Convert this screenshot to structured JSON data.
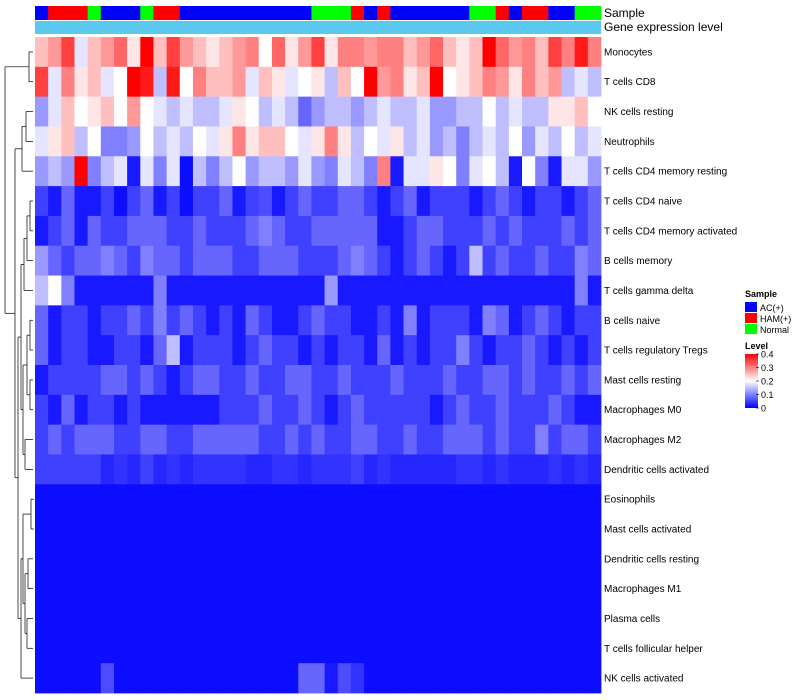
{
  "chart_data": {
    "type": "heatmap",
    "title": "",
    "annotation_labels": [
      "Sample",
      "Gene expression level"
    ],
    "sample_groups": [
      "AC(+)",
      "HAM(+)",
      "HAM(+)",
      "HAM(+)",
      "Normal",
      "AC(+)",
      "AC(+)",
      "AC(+)",
      "Normal",
      "HAM(+)",
      "HAM(+)",
      "AC(+)",
      "AC(+)",
      "AC(+)",
      "AC(+)",
      "AC(+)",
      "AC(+)",
      "AC(+)",
      "AC(+)",
      "AC(+)",
      "AC(+)",
      "Normal",
      "Normal",
      "Normal",
      "HAM(+)",
      "AC(+)",
      "HAM(+)",
      "AC(+)",
      "AC(+)",
      "AC(+)",
      "AC(+)",
      "AC(+)",
      "AC(+)",
      "Normal",
      "Normal",
      "HAM(+)",
      "AC(+)",
      "HAM(+)",
      "HAM(+)",
      "AC(+)",
      "AC(+)",
      "Normal",
      "Normal"
    ],
    "row_labels": [
      "Monocytes",
      "T cells CD8",
      "NK cells resting",
      "Neutrophils",
      "T cells CD4 memory resting",
      "T cells CD4 naive",
      "T cells CD4 memory activated",
      "B cells memory",
      "T cells gamma delta",
      "B cells naive",
      "T cells regulatory  Tregs",
      "Mast cells resting",
      "Macrophages M0",
      "Macrophages M2",
      "Dendritic cells activated",
      "Eosinophils",
      "Mast cells activated",
      "Dendritic cells resting",
      "Macrophages M1",
      "Plasma cells",
      "T cells follicular helper",
      "NK cells activated"
    ],
    "values": [
      [
        0.25,
        0.28,
        0.35,
        0.18,
        0.25,
        0.28,
        0.32,
        0.22,
        0.4,
        0.25,
        0.35,
        0.28,
        0.25,
        0.22,
        0.25,
        0.28,
        0.3,
        0.2,
        0.32,
        0.22,
        0.28,
        0.35,
        0.22,
        0.3,
        0.3,
        0.28,
        0.3,
        0.3,
        0.25,
        0.28,
        0.32,
        0.25,
        0.22,
        0.25,
        0.4,
        0.32,
        0.28,
        0.3,
        0.25,
        0.35,
        0.3,
        0.38,
        0.3
      ],
      [
        0.35,
        0.18,
        0.3,
        0.22,
        0.25,
        0.18,
        0.2,
        0.4,
        0.38,
        0.15,
        0.38,
        0.2,
        0.3,
        0.25,
        0.25,
        0.28,
        0.18,
        0.25,
        0.22,
        0.18,
        0.2,
        0.22,
        0.15,
        0.25,
        0.2,
        0.4,
        0.28,
        0.3,
        0.22,
        0.25,
        0.4,
        0.2,
        0.22,
        0.25,
        0.3,
        0.28,
        0.22,
        0.3,
        0.25,
        0.28,
        0.15,
        0.18,
        0.15
      ],
      [
        0.12,
        0.18,
        0.25,
        0.2,
        0.22,
        0.25,
        0.2,
        0.28,
        0.2,
        0.18,
        0.15,
        0.18,
        0.15,
        0.15,
        0.18,
        0.22,
        0.2,
        0.15,
        0.18,
        0.15,
        0.08,
        0.12,
        0.15,
        0.15,
        0.12,
        0.15,
        0.18,
        0.15,
        0.15,
        0.18,
        0.12,
        0.12,
        0.15,
        0.15,
        0.2,
        0.15,
        0.18,
        0.15,
        0.15,
        0.22,
        0.22,
        0.25,
        0.2
      ],
      [
        0.18,
        0.22,
        0.25,
        0.15,
        0.2,
        0.1,
        0.1,
        0.12,
        0.2,
        0.15,
        0.18,
        0.15,
        0.2,
        0.18,
        0.22,
        0.3,
        0.22,
        0.25,
        0.25,
        0.2,
        0.18,
        0.22,
        0.3,
        0.22,
        0.15,
        0.2,
        0.18,
        0.22,
        0.15,
        0.18,
        0.12,
        0.15,
        0.1,
        0.15,
        0.18,
        0.15,
        0.2,
        0.12,
        0.18,
        0.15,
        0.2,
        0.15,
        0.18
      ],
      [
        0.12,
        0.15,
        0.12,
        0.4,
        0.1,
        0.15,
        0.18,
        0.02,
        0.18,
        0.1,
        0.18,
        0.01,
        0.15,
        0.1,
        0.15,
        0.2,
        0.12,
        0.15,
        0.15,
        0.12,
        0.18,
        0.12,
        0.1,
        0.18,
        0.15,
        0.1,
        0.3,
        0.02,
        0.18,
        0.18,
        0.22,
        0.2,
        0.1,
        0.18,
        0.2,
        0.15,
        0.02,
        0.2,
        0.1,
        0.02,
        0.18,
        0.18,
        0.12
      ],
      [
        0.05,
        0.02,
        0.08,
        0.02,
        0.02,
        0.05,
        0.01,
        0.05,
        0.08,
        0.02,
        0.05,
        0.01,
        0.05,
        0.05,
        0.08,
        0.02,
        0.05,
        0.06,
        0.02,
        0.05,
        0.08,
        0.05,
        0.05,
        0.08,
        0.08,
        0.05,
        0.02,
        0.05,
        0.08,
        0.02,
        0.05,
        0.05,
        0.05,
        0.02,
        0.05,
        0.08,
        0.05,
        0.02,
        0.05,
        0.05,
        0.02,
        0.05,
        0.08
      ],
      [
        0.02,
        0.05,
        0.08,
        0.02,
        0.08,
        0.05,
        0.05,
        0.08,
        0.08,
        0.08,
        0.05,
        0.05,
        0.08,
        0.05,
        0.05,
        0.05,
        0.08,
        0.1,
        0.08,
        0.05,
        0.05,
        0.08,
        0.08,
        0.08,
        0.08,
        0.08,
        0.02,
        0.02,
        0.05,
        0.08,
        0.08,
        0.05,
        0.05,
        0.05,
        0.08,
        0.05,
        0.08,
        0.05,
        0.05,
        0.05,
        0.08,
        0.05,
        0.08
      ],
      [
        0.12,
        0.08,
        0.05,
        0.08,
        0.08,
        0.1,
        0.08,
        0.05,
        0.1,
        0.08,
        0.08,
        0.05,
        0.08,
        0.08,
        0.08,
        0.05,
        0.05,
        0.08,
        0.08,
        0.08,
        0.05,
        0.05,
        0.05,
        0.08,
        0.1,
        0.08,
        0.05,
        0.02,
        0.05,
        0.08,
        0.05,
        0.02,
        0.05,
        0.15,
        0.05,
        0.08,
        0.05,
        0.05,
        0.08,
        0.05,
        0.05,
        0.1,
        0.08
      ],
      [
        0.15,
        0.2,
        0.1,
        0.02,
        0.02,
        0.02,
        0.02,
        0.02,
        0.02,
        0.1,
        0.02,
        0.02,
        0.02,
        0.02,
        0.02,
        0.02,
        0.02,
        0.02,
        0.02,
        0.02,
        0.02,
        0.02,
        0.12,
        0.02,
        0.02,
        0.02,
        0.02,
        0.02,
        0.02,
        0.02,
        0.02,
        0.02,
        0.02,
        0.02,
        0.02,
        0.02,
        0.02,
        0.02,
        0.02,
        0.02,
        0.02,
        0.1,
        0.02
      ],
      [
        0.08,
        0.02,
        0.05,
        0.05,
        0.02,
        0.05,
        0.05,
        0.08,
        0.05,
        0.1,
        0.05,
        0.08,
        0.05,
        0.02,
        0.05,
        0.02,
        0.08,
        0.05,
        0.02,
        0.02,
        0.05,
        0.08,
        0.05,
        0.05,
        0.02,
        0.02,
        0.05,
        0.02,
        0.1,
        0.02,
        0.05,
        0.05,
        0.05,
        0.02,
        0.1,
        0.08,
        0.02,
        0.05,
        0.08,
        0.05,
        0.02,
        0.05,
        0.05
      ],
      [
        0.08,
        0.02,
        0.05,
        0.05,
        0.02,
        0.02,
        0.05,
        0.05,
        0.02,
        0.08,
        0.15,
        0.02,
        0.05,
        0.05,
        0.05,
        0.02,
        0.05,
        0.08,
        0.05,
        0.05,
        0.02,
        0.05,
        0.02,
        0.05,
        0.05,
        0.02,
        0.08,
        0.02,
        0.05,
        0.02,
        0.05,
        0.05,
        0.1,
        0.05,
        0.02,
        0.05,
        0.05,
        0.08,
        0.05,
        0.02,
        0.05,
        0.02,
        0.05
      ],
      [
        0.02,
        0.05,
        0.05,
        0.05,
        0.05,
        0.08,
        0.08,
        0.05,
        0.08,
        0.05,
        0.02,
        0.05,
        0.08,
        0.08,
        0.05,
        0.05,
        0.08,
        0.05,
        0.05,
        0.08,
        0.08,
        0.05,
        0.05,
        0.08,
        0.05,
        0.05,
        0.05,
        0.08,
        0.05,
        0.05,
        0.05,
        0.08,
        0.05,
        0.05,
        0.08,
        0.08,
        0.05,
        0.08,
        0.05,
        0.05,
        0.08,
        0.05,
        0.08
      ],
      [
        0.05,
        0.02,
        0.08,
        0.02,
        0.05,
        0.05,
        0.02,
        0.05,
        0.02,
        0.02,
        0.02,
        0.02,
        0.02,
        0.02,
        0.05,
        0.05,
        0.05,
        0.08,
        0.05,
        0.05,
        0.08,
        0.05,
        0.02,
        0.05,
        0.08,
        0.05,
        0.05,
        0.05,
        0.05,
        0.05,
        0.02,
        0.05,
        0.08,
        0.05,
        0.05,
        0.08,
        0.05,
        0.05,
        0.05,
        0.08,
        0.05,
        0.02,
        0.02
      ],
      [
        0.05,
        0.08,
        0.05,
        0.08,
        0.08,
        0.08,
        0.05,
        0.05,
        0.08,
        0.08,
        0.05,
        0.05,
        0.08,
        0.08,
        0.08,
        0.08,
        0.08,
        0.05,
        0.05,
        0.08,
        0.05,
        0.08,
        0.05,
        0.05,
        0.08,
        0.08,
        0.05,
        0.05,
        0.08,
        0.05,
        0.05,
        0.08,
        0.08,
        0.08,
        0.05,
        0.08,
        0.05,
        0.05,
        0.1,
        0.05,
        0.08,
        0.08,
        0.05
      ],
      [
        0.05,
        0.05,
        0.05,
        0.05,
        0.05,
        0.03,
        0.04,
        0.03,
        0.05,
        0.03,
        0.04,
        0.03,
        0.04,
        0.04,
        0.04,
        0.04,
        0.03,
        0.03,
        0.04,
        0.04,
        0.03,
        0.04,
        0.04,
        0.04,
        0.05,
        0.03,
        0.04,
        0.03,
        0.03,
        0.03,
        0.03,
        0.03,
        0.04,
        0.04,
        0.03,
        0.04,
        0.03,
        0.03,
        0.03,
        0.04,
        0.03,
        0.04,
        0.03
      ],
      [
        0.01,
        0.01,
        0.01,
        0.01,
        0.01,
        0.01,
        0.01,
        0.01,
        0.01,
        0.01,
        0.01,
        0.01,
        0.01,
        0.01,
        0.01,
        0.01,
        0.01,
        0.01,
        0.01,
        0.01,
        0.01,
        0.01,
        0.01,
        0.01,
        0.01,
        0.01,
        0.01,
        0.01,
        0.01,
        0.01,
        0.01,
        0.01,
        0.01,
        0.01,
        0.01,
        0.01,
        0.01,
        0.01,
        0.01,
        0.01,
        0.01,
        0.01,
        0.01
      ],
      [
        0.01,
        0.01,
        0.01,
        0.01,
        0.01,
        0.01,
        0.01,
        0.01,
        0.01,
        0.01,
        0.01,
        0.01,
        0.01,
        0.01,
        0.01,
        0.01,
        0.01,
        0.01,
        0.01,
        0.01,
        0.01,
        0.01,
        0.01,
        0.01,
        0.01,
        0.01,
        0.01,
        0.01,
        0.01,
        0.01,
        0.01,
        0.01,
        0.01,
        0.01,
        0.01,
        0.01,
        0.01,
        0.01,
        0.01,
        0.01,
        0.01,
        0.01,
        0.01
      ],
      [
        0.01,
        0.01,
        0.01,
        0.01,
        0.01,
        0.01,
        0.01,
        0.01,
        0.01,
        0.01,
        0.01,
        0.01,
        0.01,
        0.01,
        0.01,
        0.01,
        0.01,
        0.01,
        0.01,
        0.01,
        0.01,
        0.01,
        0.01,
        0.01,
        0.01,
        0.01,
        0.01,
        0.01,
        0.01,
        0.01,
        0.01,
        0.01,
        0.01,
        0.01,
        0.01,
        0.01,
        0.01,
        0.01,
        0.01,
        0.01,
        0.01,
        0.01,
        0.01
      ],
      [
        0.01,
        0.01,
        0.01,
        0.01,
        0.01,
        0.01,
        0.01,
        0.01,
        0.01,
        0.01,
        0.01,
        0.01,
        0.01,
        0.01,
        0.01,
        0.01,
        0.01,
        0.01,
        0.01,
        0.01,
        0.01,
        0.01,
        0.01,
        0.01,
        0.01,
        0.01,
        0.01,
        0.01,
        0.01,
        0.01,
        0.01,
        0.01,
        0.01,
        0.01,
        0.01,
        0.01,
        0.01,
        0.01,
        0.01,
        0.01,
        0.01,
        0.01,
        0.01
      ],
      [
        0.01,
        0.01,
        0.01,
        0.01,
        0.01,
        0.01,
        0.01,
        0.01,
        0.01,
        0.01,
        0.01,
        0.01,
        0.01,
        0.01,
        0.01,
        0.01,
        0.01,
        0.01,
        0.01,
        0.01,
        0.01,
        0.01,
        0.01,
        0.01,
        0.01,
        0.01,
        0.01,
        0.01,
        0.01,
        0.01,
        0.01,
        0.01,
        0.01,
        0.01,
        0.01,
        0.01,
        0.01,
        0.01,
        0.01,
        0.01,
        0.01,
        0.01,
        0.01
      ],
      [
        0.01,
        0.01,
        0.01,
        0.01,
        0.01,
        0.01,
        0.01,
        0.01,
        0.01,
        0.01,
        0.01,
        0.01,
        0.01,
        0.01,
        0.01,
        0.01,
        0.01,
        0.01,
        0.01,
        0.01,
        0.01,
        0.01,
        0.01,
        0.01,
        0.01,
        0.01,
        0.01,
        0.01,
        0.01,
        0.01,
        0.01,
        0.01,
        0.01,
        0.01,
        0.01,
        0.01,
        0.01,
        0.01,
        0.01,
        0.01,
        0.01,
        0.01,
        0.01
      ],
      [
        0.01,
        0.01,
        0.01,
        0.01,
        0.01,
        0.06,
        0.01,
        0.01,
        0.01,
        0.01,
        0.01,
        0.01,
        0.01,
        0.01,
        0.01,
        0.01,
        0.01,
        0.01,
        0.01,
        0.01,
        0.08,
        0.08,
        0.02,
        0.06,
        0.04,
        0.01,
        0.01,
        0.01,
        0.01,
        0.01,
        0.01,
        0.01,
        0.01,
        0.01,
        0.01,
        0.01,
        0.01,
        0.01,
        0.01,
        0.01,
        0.01,
        0.01,
        0.01
      ]
    ],
    "color_scale": {
      "min": 0,
      "mid": 0.2,
      "max": 0.4,
      "low": "#0000ff",
      "midColor": "#ffffff",
      "high": "#ff0000"
    },
    "legend": {
      "sample_title": "Sample",
      "sample_entries": [
        {
          "label": "AC(+)",
          "color": "#0000ff"
        },
        {
          "label": "HAM(+)",
          "color": "#ff0000"
        },
        {
          "label": "Normal",
          "color": "#00ff00"
        }
      ],
      "level_title": "Level",
      "level_ticks": [
        0.4,
        0.3,
        0.2,
        0.1,
        0
      ],
      "position": "right"
    },
    "gene_expression_color": "#5bc8f0",
    "dendrogram": "rows"
  }
}
